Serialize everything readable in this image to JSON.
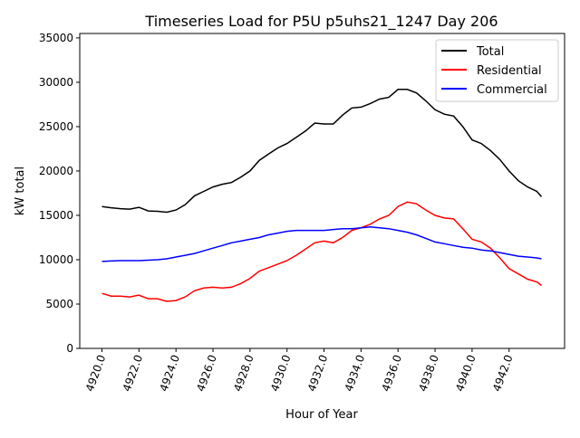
{
  "chart_data": {
    "type": "line",
    "title": "Timeseries Load for P5U p5uhs21_1247  Day 206",
    "xlabel": "Hour of Year",
    "ylabel": "kW total",
    "xlim": [
      4918.8,
      4945
    ],
    "ylim": [
      0,
      35500
    ],
    "x_ticks": [
      4920,
      4922,
      4924,
      4926,
      4928,
      4930,
      4932,
      4934,
      4936,
      4938,
      4940,
      4942
    ],
    "x_tick_labels": [
      "4920.0",
      "4922.0",
      "4924.0",
      "4926.0",
      "4928.0",
      "4930.0",
      "4932.0",
      "4934.0",
      "4936.0",
      "4938.0",
      "4940.0",
      "4942.0"
    ],
    "y_ticks": [
      0,
      5000,
      10000,
      15000,
      20000,
      25000,
      30000,
      35000
    ],
    "y_tick_labels": [
      "0",
      "5000",
      "10000",
      "15000",
      "20000",
      "25000",
      "30000",
      "35000"
    ],
    "grid": false,
    "legend_position": "top-right",
    "x": [
      4920,
      4920.5,
      4921,
      4921.5,
      4922,
      4922.5,
      4923,
      4923.5,
      4924,
      4924.5,
      4925,
      4925.5,
      4926,
      4926.5,
      4927,
      4927.5,
      4928,
      4928.5,
      4929,
      4929.5,
      4930,
      4930.5,
      4931,
      4931.5,
      4932,
      4932.5,
      4933,
      4933.5,
      4934,
      4934.5,
      4935,
      4935.5,
      4936,
      4936.5,
      4937,
      4937.5,
      4938,
      4938.5,
      4939,
      4939.5,
      4940,
      4940.5,
      4941,
      4941.5,
      4942,
      4942.5,
      4943,
      4943.5,
      4943.75
    ],
    "series": [
      {
        "name": "Total",
        "color": "#000000",
        "values": [
          16000,
          15850,
          15750,
          15700,
          15900,
          15500,
          15450,
          15350,
          15600,
          16200,
          17200,
          17700,
          18200,
          18500,
          18700,
          19300,
          20000,
          21200,
          21900,
          22600,
          23100,
          23800,
          24500,
          25400,
          25300,
          25300,
          26300,
          27100,
          27200,
          27600,
          28100,
          28300,
          29200,
          29200,
          28800,
          27900,
          26900,
          26400,
          26200,
          25000,
          23500,
          23100,
          22300,
          21300,
          20000,
          18900,
          18200,
          17700,
          17100
        ]
      },
      {
        "name": "Residential",
        "color": "#ff0000",
        "values": [
          6200,
          5900,
          5900,
          5800,
          6000,
          5600,
          5600,
          5300,
          5400,
          5800,
          6500,
          6800,
          6900,
          6800,
          6900,
          7300,
          7900,
          8700,
          9100,
          9500,
          9900,
          10500,
          11200,
          11900,
          12100,
          11900,
          12500,
          13300,
          13600,
          14000,
          14600,
          15000,
          16000,
          16500,
          16300,
          15600,
          15000,
          14700,
          14600,
          13500,
          12300,
          12000,
          11300,
          10200,
          9000,
          8400,
          7800,
          7500,
          7100
        ]
      },
      {
        "name": "Commercial",
        "color": "#0000ff",
        "values": [
          9800,
          9850,
          9900,
          9900,
          9900,
          9950,
          10000,
          10100,
          10300,
          10500,
          10700,
          11000,
          11300,
          11600,
          11900,
          12100,
          12300,
          12500,
          12800,
          13000,
          13200,
          13300,
          13300,
          13300,
          13300,
          13400,
          13500,
          13500,
          13600,
          13700,
          13600,
          13500,
          13300,
          13100,
          12800,
          12400,
          12000,
          11800,
          11600,
          11400,
          11300,
          11100,
          11000,
          10800,
          10600,
          10400,
          10300,
          10200,
          10100
        ]
      }
    ]
  }
}
